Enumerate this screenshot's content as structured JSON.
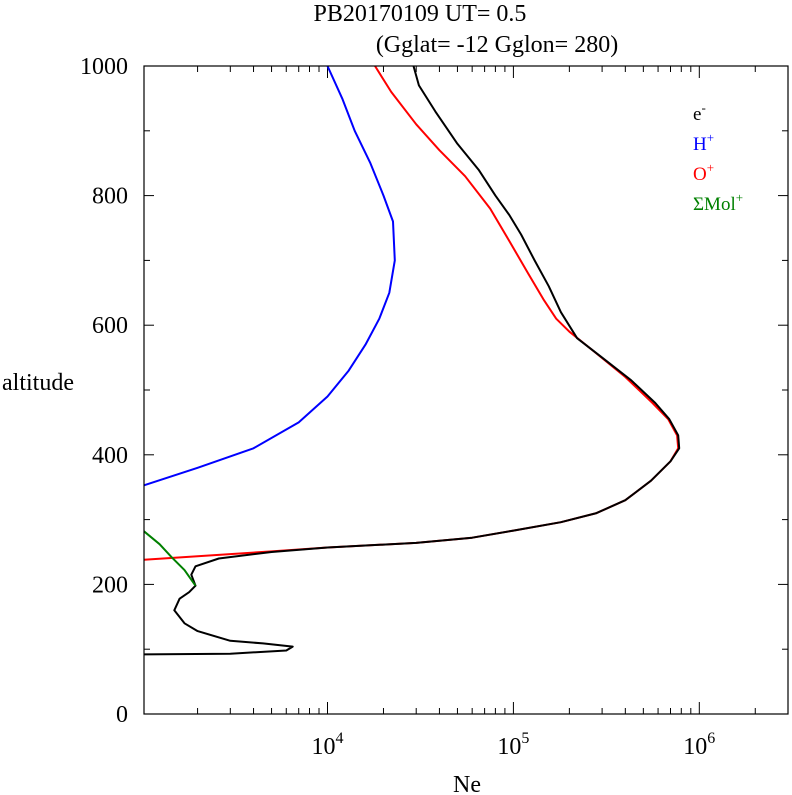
{
  "chart_data": {
    "type": "line",
    "title": "PB20170109   UT=  0.5",
    "subtitle": "(Gglat= -12   Gglon=  280)",
    "xlabel": "Ne",
    "ylabel": "altitude",
    "xscale": "log",
    "xlim": [
      1030,
      3000000
    ],
    "ylim": [
      0,
      1000
    ],
    "y_ticks": [
      "0",
      "200",
      "400",
      "600",
      "800",
      "1000"
    ],
    "x_ticks": [
      {
        "value": 10000,
        "base": "10",
        "exp": "4"
      },
      {
        "value": 100000,
        "base": "10",
        "exp": "5"
      },
      {
        "value": 1000000,
        "base": "10",
        "exp": "6"
      }
    ],
    "grid": false,
    "legend_position": "top-right",
    "legend": [
      {
        "base": "e",
        "sup": "-",
        "color": "#000000"
      },
      {
        "base": "H",
        "sup": "+",
        "color": "#0000ff"
      },
      {
        "base": "O",
        "sup": "+",
        "color": "#ff0000"
      },
      {
        "base": "ΣMol",
        "sup": "+",
        "color": "#008000"
      }
    ],
    "series": [
      {
        "color": "#ff0000",
        "points": [
          [
            1030,
            238
          ],
          [
            5000,
            251
          ],
          [
            10000,
            257
          ],
          [
            30000,
            264
          ],
          [
            60000,
            272
          ],
          [
            100000,
            283
          ],
          [
            180000,
            296
          ],
          [
            280000,
            310
          ],
          [
            400000,
            330
          ],
          [
            550000,
            360
          ],
          [
            700000,
            390
          ],
          [
            770000,
            410
          ],
          [
            760000,
            430
          ],
          [
            680000,
            455
          ],
          [
            560000,
            480
          ],
          [
            400000,
            520
          ],
          [
            270000,
            560
          ],
          [
            200000,
            590
          ],
          [
            170000,
            610
          ],
          [
            145000,
            640
          ],
          [
            120000,
            680
          ],
          [
            95000,
            730
          ],
          [
            75000,
            780
          ],
          [
            55000,
            830
          ],
          [
            40000,
            870
          ],
          [
            30000,
            910
          ],
          [
            22000,
            960
          ],
          [
            18000,
            1000
          ]
        ]
      },
      {
        "color": "#000000",
        "points": [
          [
            1030,
            92
          ],
          [
            3000,
            93
          ],
          [
            6000,
            98
          ],
          [
            6500,
            104
          ],
          [
            4500,
            109
          ],
          [
            3000,
            113
          ],
          [
            2000,
            128
          ],
          [
            1700,
            140
          ],
          [
            1500,
            160
          ],
          [
            1600,
            178
          ],
          [
            1800,
            188
          ],
          [
            1950,
            198
          ],
          [
            1850,
            215
          ],
          [
            1950,
            228
          ],
          [
            2600,
            240
          ],
          [
            5000,
            250
          ],
          [
            10000,
            257
          ],
          [
            30000,
            264
          ],
          [
            60000,
            272
          ],
          [
            100000,
            283
          ],
          [
            180000,
            296
          ],
          [
            280000,
            310
          ],
          [
            400000,
            330
          ],
          [
            550000,
            360
          ],
          [
            700000,
            390
          ],
          [
            780000,
            410
          ],
          [
            770000,
            430
          ],
          [
            690000,
            455
          ],
          [
            580000,
            480
          ],
          [
            430000,
            515
          ],
          [
            300000,
            550
          ],
          [
            220000,
            580
          ],
          [
            180000,
            620
          ],
          [
            155000,
            660
          ],
          [
            130000,
            700
          ],
          [
            110000,
            740
          ],
          [
            95000,
            770
          ],
          [
            80000,
            800
          ],
          [
            65000,
            840
          ],
          [
            50000,
            880
          ],
          [
            38000,
            930
          ],
          [
            31000,
            970
          ],
          [
            29000,
            1000
          ]
        ]
      },
      {
        "color": "#0000ff",
        "points": [
          [
            1030,
            353
          ],
          [
            2000,
            380
          ],
          [
            4000,
            410
          ],
          [
            7000,
            450
          ],
          [
            10000,
            490
          ],
          [
            13000,
            530
          ],
          [
            16000,
            570
          ],
          [
            19000,
            610
          ],
          [
            21500,
            650
          ],
          [
            23000,
            700
          ],
          [
            22500,
            760
          ],
          [
            20000,
            800
          ],
          [
            17000,
            850
          ],
          [
            14000,
            900
          ],
          [
            12000,
            950
          ],
          [
            10000,
            1000
          ]
        ]
      },
      {
        "color": "#008000",
        "points": [
          [
            1030,
            282
          ],
          [
            1250,
            262
          ],
          [
            1450,
            242
          ],
          [
            1700,
            222
          ],
          [
            1950,
            198
          ]
        ]
      }
    ]
  }
}
